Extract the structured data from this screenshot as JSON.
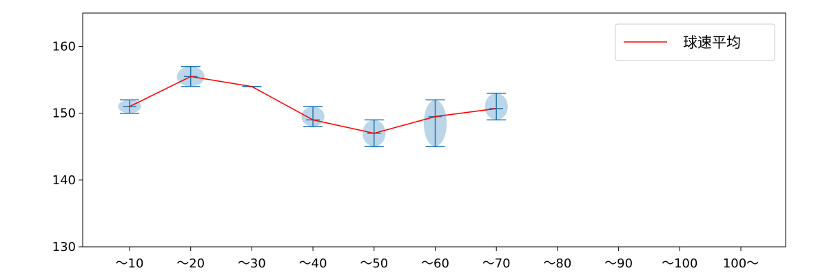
{
  "chart_data": {
    "type": "violin",
    "categories": [
      "～10",
      "～20",
      "～30",
      "～40",
      "～50",
      "～60",
      "～70",
      "～80",
      "～90",
      "～100",
      "100～"
    ],
    "distributions": [
      {
        "category": "～10",
        "min": 150,
        "max": 152,
        "median": 151,
        "width": 0.5
      },
      {
        "category": "～20",
        "min": 154,
        "max": 157,
        "median": 155.5,
        "width": 0.6
      },
      {
        "category": "～30",
        "min": 154,
        "max": 154,
        "median": 154,
        "width": 0.1
      },
      {
        "category": "～40",
        "min": 148,
        "max": 151,
        "median": 149,
        "width": 0.5
      },
      {
        "category": "～50",
        "min": 145,
        "max": 149,
        "median": 147,
        "width": 0.5
      },
      {
        "category": "～60",
        "min": 145,
        "max": 152,
        "median": 149.5,
        "width": 0.5
      },
      {
        "category": "～70",
        "min": 149,
        "max": 153,
        "median": 150.7,
        "width": 0.5
      }
    ],
    "series": [
      {
        "name": "球速平均",
        "color": "#ff0000",
        "categories": [
          "～10",
          "～20",
          "～30",
          "～40",
          "～50",
          "～60",
          "～70"
        ],
        "values": [
          151,
          155.5,
          154,
          149,
          147,
          149.5,
          150.7
        ]
      }
    ],
    "yticks": [
      130,
      140,
      150,
      160
    ],
    "ylim": [
      130,
      165
    ],
    "legend_position": "top-right",
    "grid": false,
    "violin_color": "#1f77b4"
  }
}
